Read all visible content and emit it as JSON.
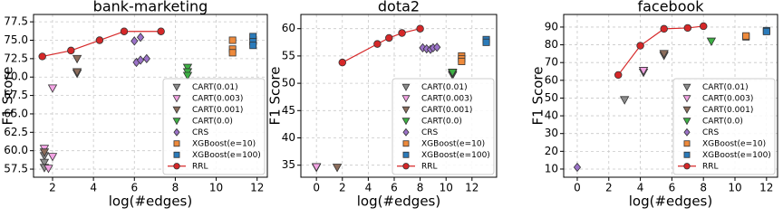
{
  "chart_data": [
    {
      "type": "scatter",
      "title": "bank-marketing",
      "xlabel": "log(#edges)",
      "ylabel": "F1 Score",
      "xlim": [
        1.07,
        12.5
      ],
      "ylim": [
        56.4,
        78.5
      ],
      "xticks": [
        2,
        4,
        6,
        8,
        10,
        12
      ],
      "yticks": [
        57.5,
        {
          "value": 60,
          "label": "60.0"
        },
        62.5,
        {
          "value": 65,
          "label": "65.0"
        },
        67.5,
        {
          "value": 70,
          "label": "70.0"
        },
        72.5,
        {
          "value": 75,
          "label": "75.0"
        },
        77.5
      ],
      "grid": true,
      "legend": "lower right",
      "series": [
        {
          "name": "CART(0.01)",
          "color": "#8c8c8c",
          "marker": "v",
          "x": [
            1.6,
            1.6,
            1.6,
            3.2
          ],
          "y": [
            59.3,
            58.4,
            57.7,
            70.5
          ]
        },
        {
          "name": "CART(0.003)",
          "color": "#f2a3e3",
          "marker": "v",
          "x": [
            1.6,
            2.0,
            2.0,
            1.8
          ],
          "y": [
            60.3,
            59.2,
            68.5,
            57.6
          ]
        },
        {
          "name": "CART(0.001)",
          "color": "#8c6d5c",
          "marker": "v",
          "x": [
            1.6,
            3.2,
            3.2
          ],
          "y": [
            59.8,
            72.5,
            70.7
          ]
        },
        {
          "name": "CART(0.0)",
          "color": "#3cb043",
          "marker": "v",
          "x": [
            8.6,
            8.6,
            8.6
          ],
          "y": [
            71.3,
            70.7,
            70.2
          ]
        },
        {
          "name": "CRS",
          "color": "#9b72c8",
          "marker": "D",
          "x": [
            6.0,
            6.3,
            6.1,
            6.3,
            6.6
          ],
          "y": [
            74.9,
            75.4,
            72.0,
            72.3,
            72.5
          ]
        },
        {
          "name": "XGBoost(e=10)",
          "color": "#ee8a3c",
          "marker": "s",
          "x": [
            10.8,
            10.8,
            10.8
          ],
          "y": [
            75.0,
            73.8,
            73.3
          ]
        },
        {
          "name": "XGBoost(e=100)",
          "color": "#2b7bba",
          "marker": "s",
          "x": [
            11.8,
            11.8,
            11.8
          ],
          "y": [
            75.5,
            74.8,
            74.3
          ]
        },
        {
          "name": "RRL",
          "color": "#d62728",
          "marker": "o",
          "line": true,
          "x": [
            1.5,
            2.9,
            4.3,
            5.5,
            7.3
          ],
          "y": [
            72.8,
            73.6,
            75.0,
            76.2,
            76.2
          ]
        }
      ]
    },
    {
      "type": "scatter",
      "title": "dota2",
      "xlabel": "log(#edges)",
      "ylabel": "F1 Score",
      "xlim": [
        -1.2,
        13.9
      ],
      "ylim": [
        32.8,
        62.6
      ],
      "xticks": [
        0,
        2,
        4,
        6,
        8,
        10,
        12
      ],
      "yticks": [
        35,
        40,
        45,
        50,
        55,
        60
      ],
      "grid": true,
      "legend": "lower right",
      "series": [
        {
          "name": "CART(0.01)",
          "color": "#8c8c8c",
          "marker": "v",
          "x": [
            0,
            10.5
          ],
          "y": [
            34.6,
            51.5
          ]
        },
        {
          "name": "CART(0.003)",
          "color": "#f2a3e3",
          "marker": "v",
          "x": [
            0
          ],
          "y": [
            34.7
          ]
        },
        {
          "name": "CART(0.001)",
          "color": "#8c6d5c",
          "marker": "v",
          "x": [
            1.6,
            10.5
          ],
          "y": [
            34.6,
            51.8
          ]
        },
        {
          "name": "CART(0.0)",
          "color": "#3cb043",
          "marker": "v",
          "x": [
            10.5
          ],
          "y": [
            52.0
          ]
        },
        {
          "name": "CRS",
          "color": "#9b72c8",
          "marker": "D",
          "x": [
            8.2,
            8.5,
            8.8,
            9.0,
            9.3
          ],
          "y": [
            56.5,
            56.3,
            56.2,
            56.5,
            56.6
          ]
        },
        {
          "name": "XGBoost(e=10)",
          "color": "#ee8a3c",
          "marker": "s",
          "x": [
            11.2,
            11.2,
            11.2
          ],
          "y": [
            55.0,
            54.5,
            54.0
          ]
        },
        {
          "name": "XGBoost(e=100)",
          "color": "#2b7bba",
          "marker": "s",
          "x": [
            13.1,
            13.1
          ],
          "y": [
            58.0,
            57.5
          ]
        },
        {
          "name": "RRL",
          "color": "#d62728",
          "marker": "o",
          "line": true,
          "x": [
            2,
            4.7,
            5.6,
            6.6,
            8.0
          ],
          "y": [
            53.8,
            57.2,
            58.3,
            59.2,
            60.0
          ]
        }
      ]
    },
    {
      "type": "scatter",
      "title": "facebook",
      "xlabel": "log(#edges)",
      "ylabel": "F1 Score",
      "xlim": [
        -0.86,
        12.7
      ],
      "ylim": [
        5.4,
        97.1
      ],
      "xticks": [
        0,
        2,
        4,
        6,
        8,
        10,
        12
      ],
      "yticks": [
        10,
        20,
        30,
        40,
        50,
        60,
        70,
        80,
        90
      ],
      "grid": true,
      "legend": "lower right",
      "series": [
        {
          "name": "CART(0.01)",
          "color": "#8c8c8c",
          "marker": "v",
          "x": [
            3.0,
            4.2,
            5.5
          ],
          "y": [
            49,
            64.5,
            74
          ]
        },
        {
          "name": "CART(0.003)",
          "color": "#f2a3e3",
          "marker": "v",
          "x": [
            4.2
          ],
          "y": [
            65.5
          ]
        },
        {
          "name": "CART(0.001)",
          "color": "#8c6d5c",
          "marker": "v",
          "x": [
            5.5
          ],
          "y": [
            75
          ]
        },
        {
          "name": "CART(0.0)",
          "color": "#3cb043",
          "marker": "v",
          "x": [
            8.5
          ],
          "y": [
            82
          ]
        },
        {
          "name": "CRS",
          "color": "#9b72c8",
          "marker": "D",
          "x": [
            0
          ],
          "y": [
            11
          ]
        },
        {
          "name": "XGBoost(e=10)",
          "color": "#ee8a3c",
          "marker": "s",
          "x": [
            10.7,
            10.7
          ],
          "y": [
            84.5,
            85
          ]
        },
        {
          "name": "XGBoost(e=100)",
          "color": "#2b7bba",
          "marker": "s",
          "x": [
            12,
            12
          ],
          "y": [
            88,
            87.5
          ]
        },
        {
          "name": "RRL",
          "color": "#d62728",
          "marker": "o",
          "line": true,
          "x": [
            2.6,
            4.0,
            5.5,
            7.0,
            8.0
          ],
          "y": [
            63,
            79.5,
            89,
            89.5,
            90.5
          ]
        }
      ]
    }
  ]
}
